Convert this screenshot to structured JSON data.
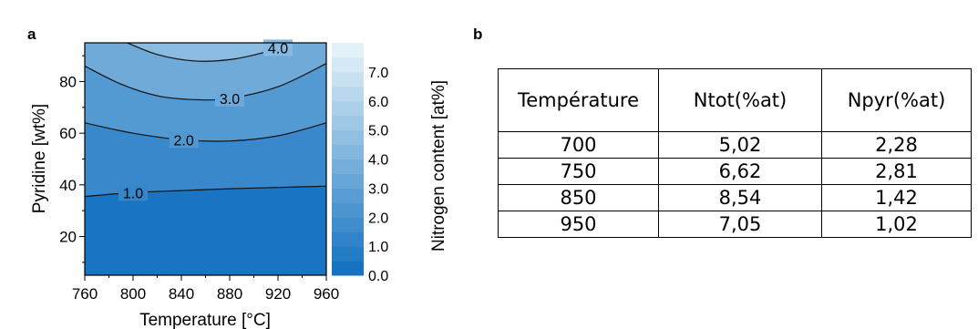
{
  "panel_a_label": "a",
  "panel_b_label": "b",
  "chart_data": {
    "type": "contour",
    "xlabel": "Temperature [°C]",
    "ylabel": "Pyridine [wt%]",
    "colorbar_label": "Nitrogen content [at%]",
    "xlim": [
      760,
      960
    ],
    "ylim": [
      5,
      95
    ],
    "x_ticks": [
      760,
      800,
      840,
      880,
      920,
      960
    ],
    "y_ticks": [
      20,
      40,
      60,
      80
    ],
    "colorbar_ticks": [
      0.0,
      1.0,
      2.0,
      3.0,
      4.0,
      5.0,
      6.0,
      7.0
    ],
    "colorbar_tick_labels": [
      "0.0",
      "1.0",
      "2.0",
      "3.0",
      "4.0",
      "5.0",
      "6.0",
      "7.0"
    ],
    "colorbar_range": [
      0,
      8
    ],
    "colors": {
      "low": "#0f6fc0",
      "high": "#eaf6fa"
    },
    "contours": [
      {
        "level": 1.0,
        "label": "1.0",
        "points": [
          [
            760,
            35.5
          ],
          [
            800,
            37
          ],
          [
            840,
            37.8
          ],
          [
            880,
            38.5
          ],
          [
            920,
            39
          ],
          [
            960,
            39.5
          ]
        ]
      },
      {
        "level": 2.0,
        "label": "2.0",
        "points": [
          [
            760,
            64
          ],
          [
            800,
            60
          ],
          [
            840,
            57.5
          ],
          [
            880,
            57
          ],
          [
            920,
            59
          ],
          [
            960,
            64
          ]
        ]
      },
      {
        "level": 3.0,
        "label": "3.0",
        "points": [
          [
            760,
            86
          ],
          [
            790,
            79
          ],
          [
            820,
            74.5
          ],
          [
            850,
            73
          ],
          [
            880,
            73.5
          ],
          [
            920,
            78
          ],
          [
            960,
            87
          ]
        ]
      },
      {
        "level": 4.0,
        "label": "4.0",
        "points": [
          [
            795,
            95
          ],
          [
            820,
            90.5
          ],
          [
            850,
            88
          ],
          [
            880,
            88.5
          ],
          [
            910,
            91.5
          ],
          [
            932,
            95
          ]
        ]
      }
    ]
  },
  "table": {
    "headers": [
      "Température",
      "Ntot(%at)",
      "Npyr(%at)"
    ],
    "rows": [
      [
        "700",
        "5,02",
        "2,28"
      ],
      [
        "750",
        "6,62",
        "2,81"
      ],
      [
        "850",
        "8,54",
        "1,42"
      ],
      [
        "950",
        "7,05",
        "1,02"
      ]
    ]
  }
}
